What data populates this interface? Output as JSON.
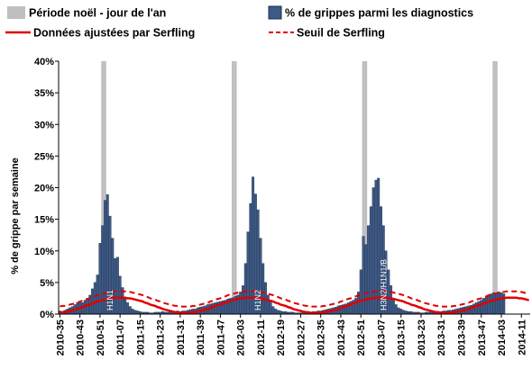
{
  "chart_data": {
    "type": "bar",
    "y_label": "% de grippe par semaine",
    "ylim": [
      0,
      40
    ],
    "yticks": [
      {
        "value": 0,
        "label": "0%"
      },
      {
        "value": 5,
        "label": "5%"
      },
      {
        "value": 10,
        "label": "10%"
      },
      {
        "value": 15,
        "label": "15%"
      },
      {
        "value": 20,
        "label": "20%"
      },
      {
        "value": 25,
        "label": "25%"
      },
      {
        "value": 30,
        "label": "30%"
      },
      {
        "value": 35,
        "label": "35%"
      },
      {
        "value": 40,
        "label": "40%"
      }
    ],
    "categories": [
      "2010-35",
      null,
      null,
      null,
      null,
      null,
      null,
      null,
      "2010-43",
      null,
      null,
      null,
      null,
      null,
      null,
      null,
      "2010-51",
      null,
      null,
      null,
      null,
      null,
      null,
      null,
      "2011-07",
      null,
      null,
      null,
      null,
      null,
      null,
      null,
      "2011-15",
      null,
      null,
      null,
      null,
      null,
      null,
      null,
      "2011-23",
      null,
      null,
      null,
      null,
      null,
      null,
      null,
      "2011-31",
      null,
      null,
      null,
      null,
      null,
      null,
      null,
      "2011-39",
      null,
      null,
      null,
      null,
      null,
      null,
      null,
      "2011-47",
      null,
      null,
      null,
      null,
      null,
      null,
      null,
      "2012-03",
      null,
      null,
      null,
      null,
      null,
      null,
      null,
      "2012-11",
      null,
      null,
      null,
      null,
      null,
      null,
      null,
      "2012-19",
      null,
      null,
      null,
      null,
      null,
      null,
      null,
      "2012-27",
      null,
      null,
      null,
      null,
      null,
      null,
      null,
      "2012-35",
      null,
      null,
      null,
      null,
      null,
      null,
      null,
      "2012-43",
      null,
      null,
      null,
      null,
      null,
      null,
      null,
      "2012-51",
      null,
      null,
      null,
      null,
      null,
      null,
      null,
      "2013-07",
      null,
      null,
      null,
      null,
      null,
      null,
      null,
      "2013-15",
      null,
      null,
      null,
      null,
      null,
      null,
      null,
      "2013-23",
      null,
      null,
      null,
      null,
      null,
      null,
      null,
      "2013-31",
      null,
      null,
      null,
      null,
      null,
      null,
      null,
      "2013-39",
      null,
      null,
      null,
      null,
      null,
      null,
      null,
      "2013-47",
      null,
      null,
      null,
      null,
      null,
      null,
      null,
      "2014-03",
      null,
      null,
      null,
      null,
      null,
      null,
      null,
      "2014-11",
      null,
      null,
      null
    ],
    "series": [
      {
        "name": "Période noël - jour de l'an",
        "type": "band",
        "color": "#bfbfbf",
        "weeks": [
          17,
          18,
          69,
          70,
          121,
          122,
          173,
          174
        ]
      },
      {
        "name": "% de grippes parmi les diagnostics",
        "type": "bar",
        "color": "#3d5a87",
        "values": [
          0.5,
          0.4,
          0.6,
          0.8,
          1.0,
          1.2,
          1.5,
          1.8,
          2.0,
          1.8,
          2.2,
          2.5,
          3.0,
          4.0,
          5.0,
          6.2,
          11.2,
          14.0,
          18.0,
          18.9,
          15.5,
          12.0,
          8.8,
          9.0,
          6.0,
          4.2,
          2.5,
          1.8,
          1.2,
          0.8,
          0.6,
          0.5,
          0.4,
          0.3,
          0.3,
          0.3,
          0.2,
          0.2,
          0.3,
          0.3,
          0.3,
          0.4,
          0.3,
          0.3,
          0.4,
          0.3,
          0.4,
          0.5,
          0.4,
          0.5,
          0.5,
          0.6,
          0.7,
          0.8,
          0.8,
          1.0,
          1.1,
          1.2,
          1.3,
          1.5,
          1.6,
          1.7,
          1.8,
          1.9,
          2.0,
          2.1,
          2.2,
          2.4,
          2.5,
          2.6,
          2.8,
          3.0,
          3.5,
          4.5,
          8.0,
          13.0,
          17.5,
          21.7,
          19.0,
          16.5,
          12.0,
          8.0,
          5.0,
          3.0,
          2.0,
          1.2,
          0.8,
          0.6,
          0.5,
          0.4,
          0.4,
          0.3,
          0.3,
          0.3,
          0.2,
          0.2,
          0.2,
          0.3,
          0.3,
          0.3,
          0.3,
          0.4,
          0.4,
          0.5,
          0.5,
          0.6,
          0.7,
          0.8,
          0.9,
          1.0,
          1.1,
          1.3,
          1.4,
          1.5,
          1.6,
          1.8,
          2.0,
          2.2,
          2.5,
          3.5,
          7.0,
          12.3,
          11.0,
          14.0,
          17.0,
          20.0,
          21.2,
          21.5,
          17.0,
          14.0,
          10.0,
          7.0,
          4.5,
          2.5,
          1.5,
          1.0,
          0.8,
          0.6,
          0.5,
          0.4,
          0.4,
          0.3,
          0.3,
          0.3,
          0.2,
          0.2,
          0.3,
          0.3,
          0.3,
          0.3,
          0.4,
          0.4,
          0.4,
          0.5,
          0.5,
          0.6,
          0.6,
          0.7,
          0.8,
          0.9,
          1.0,
          1.1,
          1.2,
          1.3,
          1.4,
          1.6,
          1.8,
          2.0,
          2.2,
          2.5,
          2.8,
          3.0,
          3.2,
          3.4,
          3.3,
          3.5,
          3.4,
          3.2,
          null,
          null,
          null,
          null,
          null,
          null,
          null,
          null,
          null,
          null
        ]
      },
      {
        "name": "Données ajustées par Serfling",
        "type": "line",
        "color": "#e00000",
        "values": [
          0.2,
          0.3,
          0.3,
          0.4,
          0.5,
          0.6,
          0.7,
          0.8,
          1.0,
          1.1,
          1.3,
          1.4,
          1.5,
          1.7,
          1.8,
          2.0,
          2.1,
          2.2,
          2.3,
          2.4,
          2.5,
          2.5,
          2.6,
          2.6,
          2.6,
          2.6,
          2.6,
          2.5,
          2.5,
          2.4,
          2.3,
          2.2,
          2.1,
          2.0,
          1.8,
          1.7,
          1.5,
          1.4,
          1.3,
          1.1,
          1.0,
          0.8,
          0.7,
          0.6,
          0.5,
          0.4,
          0.3,
          0.3,
          0.2,
          0.2,
          0.2,
          0.2,
          0.2,
          0.3,
          0.3,
          0.4,
          0.5,
          0.6,
          0.7,
          0.8,
          1.0,
          1.1,
          1.3,
          1.4,
          1.5,
          1.7,
          1.8,
          2.0,
          2.1,
          2.2,
          2.3,
          2.4,
          2.5,
          2.5,
          2.6,
          2.6,
          2.6,
          2.6,
          2.6,
          2.5,
          2.5,
          2.4,
          2.3,
          2.2,
          2.1,
          2.0,
          1.8,
          1.7,
          1.5,
          1.4,
          1.3,
          1.1,
          1.0,
          0.8,
          0.7,
          0.6,
          0.5,
          0.4,
          0.3,
          0.3,
          0.2,
          0.2,
          0.2,
          0.2,
          0.2,
          0.3,
          0.3,
          0.4,
          0.5,
          0.6,
          0.7,
          0.8,
          1.0,
          1.1,
          1.3,
          1.4,
          1.5,
          1.7,
          1.8,
          2.0,
          2.1,
          2.2,
          2.3,
          2.4,
          2.5,
          2.5,
          2.6,
          2.6,
          2.6,
          2.6,
          2.6,
          2.5,
          2.5,
          2.4,
          2.3,
          2.2,
          2.1,
          2.0,
          1.8,
          1.7,
          1.5,
          1.4,
          1.3,
          1.1,
          1.0,
          0.8,
          0.7,
          0.6,
          0.5,
          0.4,
          0.3,
          0.3,
          0.2,
          0.2,
          0.2,
          0.2,
          0.2,
          0.3,
          0.3,
          0.4,
          0.5,
          0.6,
          0.7,
          0.8,
          1.0,
          1.1,
          1.3,
          1.4,
          1.5,
          1.7,
          1.8,
          2.0,
          2.1,
          2.2,
          2.3,
          2.4,
          2.5,
          2.5,
          2.6,
          2.6,
          2.6,
          2.6,
          2.6,
          2.5,
          2.5,
          2.4,
          2.3,
          2.2
        ]
      },
      {
        "name": "Seuil de Serfling",
        "type": "line",
        "dashed": true,
        "color": "#e00000",
        "values": [
          1.2,
          1.3,
          1.3,
          1.4,
          1.5,
          1.6,
          1.7,
          1.8,
          2.0,
          2.1,
          2.3,
          2.4,
          2.5,
          2.7,
          2.8,
          3.0,
          3.1,
          3.2,
          3.3,
          3.4,
          3.5,
          3.5,
          3.6,
          3.6,
          3.6,
          3.6,
          3.6,
          3.5,
          3.5,
          3.4,
          3.3,
          3.2,
          3.1,
          3.0,
          2.8,
          2.7,
          2.5,
          2.4,
          2.3,
          2.1,
          2.0,
          1.8,
          1.7,
          1.6,
          1.5,
          1.4,
          1.3,
          1.3,
          1.2,
          1.2,
          1.2,
          1.2,
          1.2,
          1.3,
          1.3,
          1.4,
          1.5,
          1.6,
          1.7,
          1.8,
          2.0,
          2.1,
          2.3,
          2.4,
          2.5,
          2.7,
          2.8,
          3.0,
          3.1,
          3.2,
          3.3,
          3.4,
          3.5,
          3.5,
          3.6,
          3.6,
          3.6,
          3.6,
          3.6,
          3.5,
          3.5,
          3.4,
          3.3,
          3.2,
          3.1,
          3.0,
          2.8,
          2.7,
          2.5,
          2.4,
          2.3,
          2.1,
          2.0,
          1.8,
          1.7,
          1.6,
          1.5,
          1.4,
          1.3,
          1.3,
          1.2,
          1.2,
          1.2,
          1.2,
          1.2,
          1.3,
          1.3,
          1.4,
          1.5,
          1.6,
          1.7,
          1.8,
          2.0,
          2.1,
          2.3,
          2.4,
          2.5,
          2.7,
          2.8,
          3.0,
          3.1,
          3.2,
          3.3,
          3.4,
          3.5,
          3.5,
          3.6,
          3.6,
          3.6,
          3.6,
          3.6,
          3.5,
          3.5,
          3.4,
          3.3,
          3.2,
          3.1,
          3.0,
          2.8,
          2.7,
          2.5,
          2.4,
          2.3,
          2.1,
          2.0,
          1.8,
          1.7,
          1.6,
          1.5,
          1.4,
          1.3,
          1.3,
          1.2,
          1.2,
          1.2,
          1.2,
          1.2,
          1.3,
          1.3,
          1.4,
          1.5,
          1.6,
          1.7,
          1.8,
          2.0,
          2.1,
          2.3,
          2.4,
          2.5,
          2.7,
          2.8,
          3.0,
          3.1,
          3.2,
          3.3,
          3.4,
          3.5,
          3.5,
          3.6,
          3.6,
          3.6,
          3.6,
          3.6,
          3.5,
          3.5,
          3.4,
          3.3,
          3.2
        ]
      }
    ],
    "annotations": [
      "H1N1",
      "H1N2",
      "H3N2/H1N1/B"
    ]
  }
}
